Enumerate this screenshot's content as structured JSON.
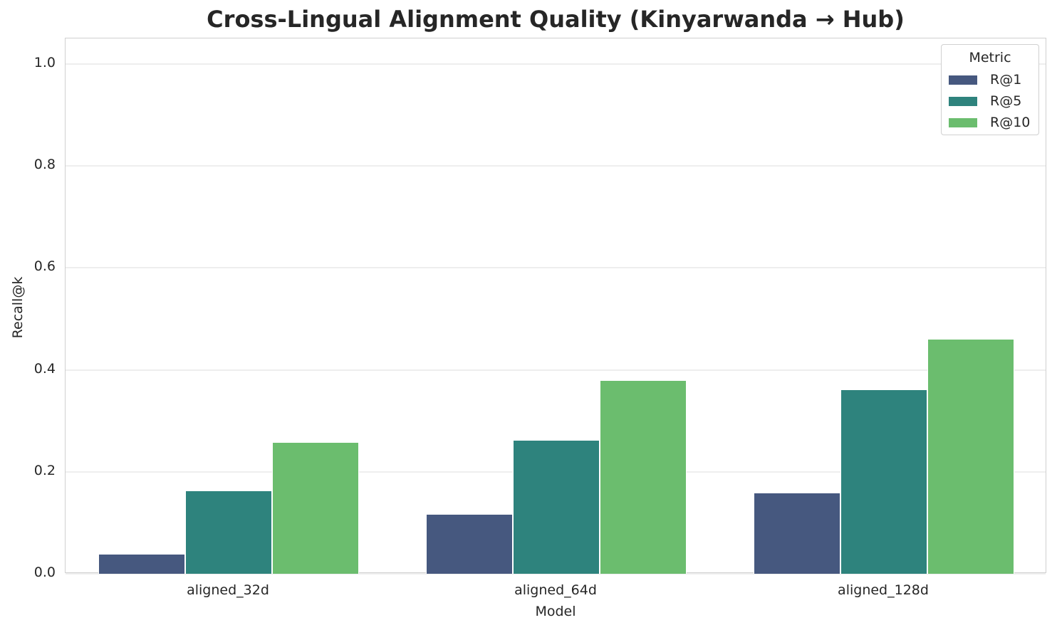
{
  "title": "Cross-Lingual Alignment Quality (Kinyarwanda → Hub)",
  "xaxis": {
    "label": "Model",
    "ticks": [
      "aligned_32d",
      "aligned_64d",
      "aligned_128d"
    ]
  },
  "yaxis": {
    "label": "Recall@k",
    "ticks": [
      "0.0",
      "0.2",
      "0.4",
      "0.6",
      "0.8",
      "1.0"
    ]
  },
  "legend": {
    "title": "Metric",
    "items": [
      {
        "label": "R@1",
        "color": "#46587f"
      },
      {
        "label": "R@5",
        "color": "#2e837d"
      },
      {
        "label": "R@10",
        "color": "#6bbd6e"
      }
    ]
  },
  "chart_data": {
    "type": "bar",
    "title": "Cross-Lingual Alignment Quality (Kinyarwanda → Hub)",
    "xlabel": "Model",
    "ylabel": "Recall@k",
    "categories": [
      "aligned_32d",
      "aligned_64d",
      "aligned_128d"
    ],
    "series": [
      {
        "name": "R@1",
        "color": "#46587f",
        "values": [
          0.038,
          0.116,
          0.158
        ]
      },
      {
        "name": "R@5",
        "color": "#2e837d",
        "values": [
          0.162,
          0.261,
          0.36
        ]
      },
      {
        "name": "R@10",
        "color": "#6bbd6e",
        "values": [
          0.257,
          0.378,
          0.459
        ]
      }
    ],
    "ylim": [
      0,
      1.05
    ],
    "yticks": [
      0.0,
      0.2,
      0.4,
      0.6,
      0.8,
      1.0
    ],
    "grid": true,
    "legend_position": "upper right",
    "legend_title": "Metric"
  }
}
